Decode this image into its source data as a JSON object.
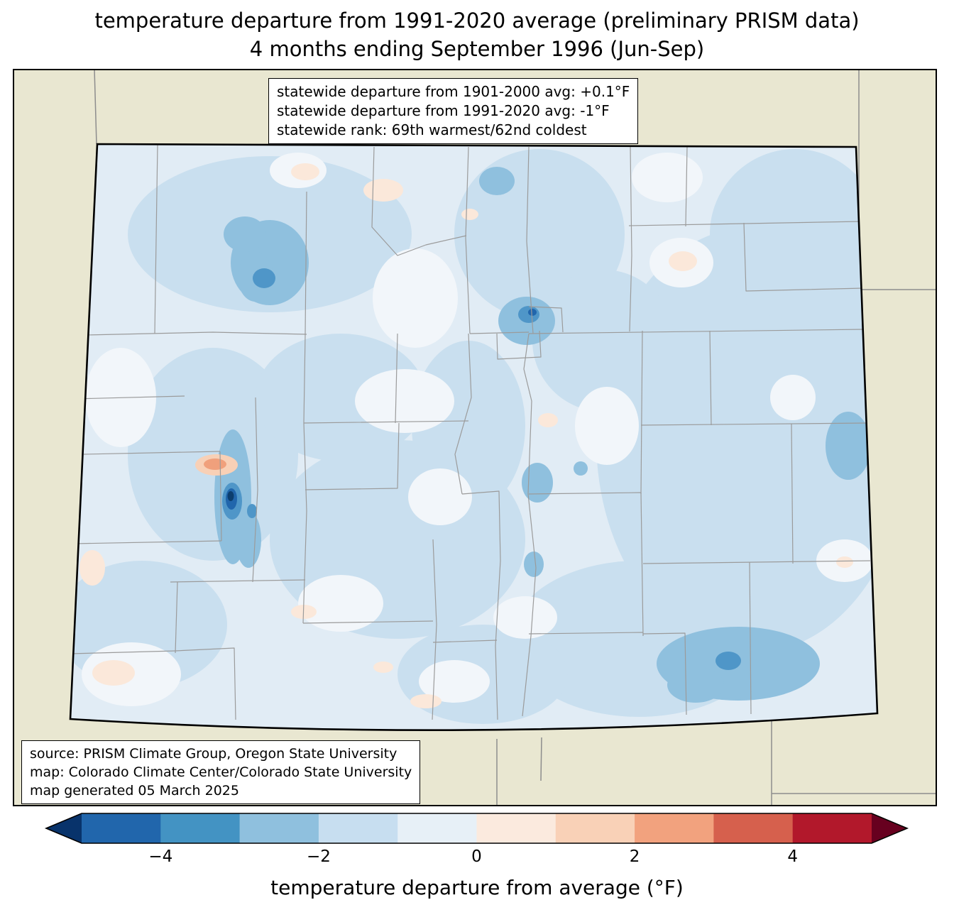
{
  "title": {
    "line1": "temperature departure from 1991-2020 average (preliminary PRISM data)",
    "line2": "4 months ending September 1996 (Jun-Sep)"
  },
  "stats_box": {
    "lines": [
      "statewide departure from 1901-2000 avg: +0.1°F",
      "statewide departure from 1991-2020 avg: -1°F",
      "statewide rank: 69th warmest/62nd coldest"
    ]
  },
  "source_box": {
    "lines": [
      "source: PRISM Climate Group, Oregon State University",
      "map: Colorado Climate Center/Colorado State University",
      "map generated 05 March 2025"
    ]
  },
  "colorbar": {
    "label": "temperature departure from average (°F)",
    "range": [
      -5,
      5
    ],
    "ticks": [
      {
        "value": -4,
        "label": "−4"
      },
      {
        "value": -2,
        "label": "−2"
      },
      {
        "value": 0,
        "label": "0"
      },
      {
        "value": 2,
        "label": "2"
      },
      {
        "value": 4,
        "label": "4"
      }
    ],
    "segment_colors": [
      "#2166ac",
      "#4393c3",
      "#8fc0de",
      "#c7def0",
      "#e7f0f7",
      "#fbeade",
      "#f9d1b7",
      "#f2a27e",
      "#d6604d",
      "#b2182b"
    ],
    "arrow_left_color": "#08336b",
    "arrow_right_color": "#67001f"
  },
  "map": {
    "region": "Colorado",
    "palette": {
      "land_beige": "#e9e7d1",
      "county_line": "#9b9b9b",
      "neighbor_line": "#8d8d8d",
      "state_border": "#000000",
      "blue_m0": "#f2f6fa",
      "blue_m1": "#e1ecf5",
      "blue_m2": "#c9dfef",
      "blue_m3": "#8fc0de",
      "blue_m4": "#4f96c8",
      "blue_m5": "#2166ac",
      "blue_m6": "#0c3e6e",
      "red_p1": "#fbe8da",
      "red_p2": "#f8d0b6",
      "red_p3": "#f0a07c"
    }
  }
}
